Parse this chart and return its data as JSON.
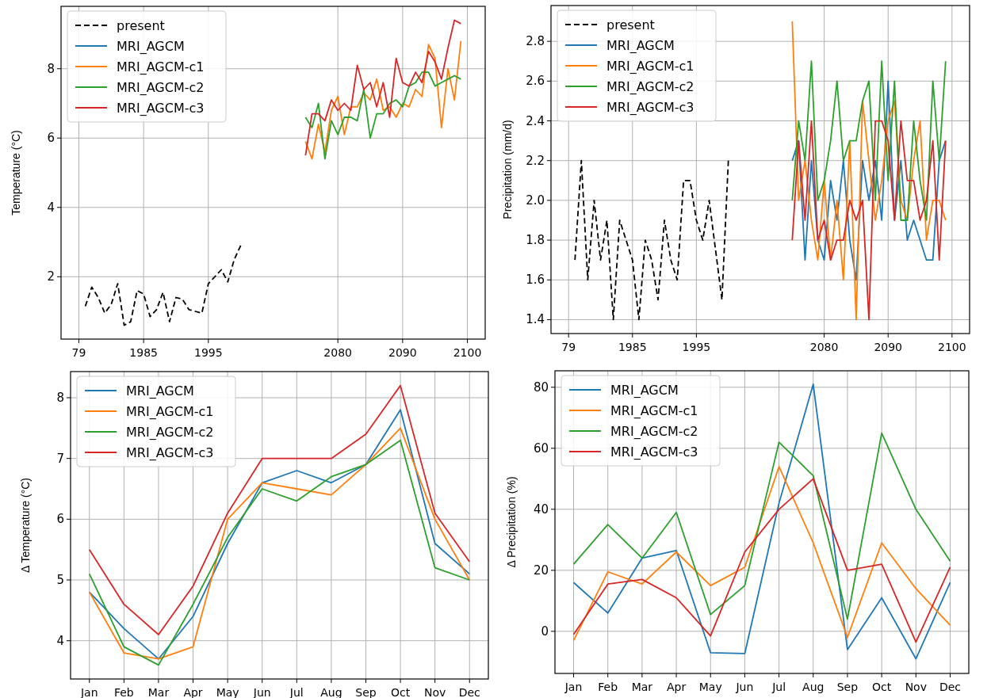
{
  "chart_data": [
    {
      "type": "line",
      "ylabel": "Temperature (°C)",
      "categories": [
        "79",
        null,
        null,
        null,
        null,
        null,
        null,
        null,
        null,
        null,
        "1985",
        null,
        null,
        null,
        null,
        null,
        null,
        null,
        null,
        null,
        "1995",
        null,
        null,
        null,
        null,
        null,
        null,
        null,
        null,
        null,
        null,
        null,
        null,
        null,
        null,
        null,
        null,
        null,
        null,
        null,
        "2080",
        null,
        null,
        null,
        null,
        null,
        null,
        null,
        null,
        null,
        "2090",
        null,
        null,
        null,
        null,
        null,
        null,
        null,
        null,
        null,
        "2100"
      ],
      "ylim": [
        0.2,
        9.8
      ],
      "yticks": [
        2,
        4,
        6,
        8
      ],
      "grid": true,
      "legend": "top left",
      "series": [
        {
          "name": "present",
          "color": "#000000",
          "line_style": "dashed",
          "values": [
            null,
            1.15,
            1.7,
            1.4,
            0.95,
            1.2,
            1.8,
            0.6,
            0.7,
            1.6,
            1.5,
            0.85,
            1.05,
            1.55,
            0.7,
            1.4,
            1.35,
            1.05,
            1.0,
            0.95,
            1.8,
            2.0,
            2.2,
            1.85,
            2.5,
            2.9,
            null,
            null,
            null,
            null,
            null,
            null,
            null,
            null,
            null,
            null,
            null,
            null,
            null,
            null,
            null,
            null,
            null,
            null,
            null,
            null,
            null,
            null,
            null,
            null,
            null,
            null,
            null,
            null,
            null,
            null,
            null,
            null,
            null,
            null,
            null
          ]
        },
        {
          "name": "MRI_AGCM",
          "color": "#1f77b4",
          "values": [
            null,
            null,
            null,
            null,
            null,
            null,
            null,
            null,
            null,
            null,
            null,
            null,
            null,
            null,
            null,
            null,
            null,
            null,
            null,
            null,
            null,
            null,
            null,
            null,
            null,
            null,
            null,
            null,
            null,
            null,
            null,
            null,
            null,
            null,
            null,
            null,
            null,
            null,
            null,
            null,
            null,
            null,
            null,
            null,
            null,
            null,
            null,
            null,
            null,
            null,
            null,
            null,
            null,
            null,
            null,
            null,
            null,
            null,
            null,
            null,
            null
          ]
        },
        {
          "name": "MRI_AGCM-c1",
          "color": "#ff7f0e",
          "values": [
            null,
            null,
            null,
            null,
            null,
            null,
            null,
            null,
            null,
            null,
            null,
            null,
            null,
            null,
            null,
            null,
            null,
            null,
            null,
            null,
            null,
            null,
            null,
            null,
            null,
            null,
            null,
            null,
            null,
            null,
            null,
            null,
            null,
            null,
            null,
            5.9,
            5.4,
            6.4,
            5.6,
            6.8,
            7.2,
            6.1,
            6.9,
            6.9,
            7.3,
            7.1,
            7.7,
            6.8,
            6.9,
            6.6,
            7.0,
            6.9,
            7.4,
            7.2,
            8.7,
            8.3,
            6.3,
            8.0,
            7.1,
            8.8,
            null
          ]
        },
        {
          "name": "MRI_AGCM-c2",
          "color": "#2ca02c",
          "values": [
            null,
            null,
            null,
            null,
            null,
            null,
            null,
            null,
            null,
            null,
            null,
            null,
            null,
            null,
            null,
            null,
            null,
            null,
            null,
            null,
            null,
            null,
            null,
            null,
            null,
            null,
            null,
            null,
            null,
            null,
            null,
            null,
            null,
            null,
            null,
            6.6,
            6.3,
            7.0,
            5.4,
            6.5,
            6.1,
            6.6,
            6.6,
            6.5,
            7.4,
            6.0,
            6.7,
            6.7,
            7.0,
            7.1,
            6.9,
            7.5,
            7.6,
            7.9,
            7.9,
            7.5,
            7.6,
            7.7,
            7.8,
            7.7,
            null
          ]
        },
        {
          "name": "MRI_AGCM-c3",
          "color": "#d62728",
          "values": [
            null,
            null,
            null,
            null,
            null,
            null,
            null,
            null,
            null,
            null,
            null,
            null,
            null,
            null,
            null,
            null,
            null,
            null,
            null,
            null,
            null,
            null,
            null,
            null,
            null,
            null,
            null,
            null,
            null,
            null,
            null,
            null,
            null,
            null,
            null,
            5.5,
            6.7,
            6.7,
            6.5,
            7.1,
            6.8,
            7.0,
            6.8,
            8.1,
            7.4,
            7.6,
            6.9,
            7.6,
            6.6,
            8.3,
            7.6,
            7.5,
            7.9,
            7.6,
            8.5,
            8.2,
            7.7,
            8.6,
            9.4,
            9.3,
            null
          ]
        }
      ]
    },
    {
      "type": "line",
      "ylabel": "Precipitation (mm/d)",
      "categories": [
        "79",
        null,
        null,
        null,
        null,
        null,
        null,
        null,
        null,
        null,
        "1985",
        null,
        null,
        null,
        null,
        null,
        null,
        null,
        null,
        null,
        "1995",
        null,
        null,
        null,
        null,
        null,
        null,
        null,
        null,
        null,
        null,
        null,
        null,
        null,
        null,
        null,
        null,
        null,
        null,
        null,
        "2080",
        null,
        null,
        null,
        null,
        null,
        null,
        null,
        null,
        null,
        "2090",
        null,
        null,
        null,
        null,
        null,
        null,
        null,
        null,
        null,
        "2100"
      ],
      "ylim": [
        1.33,
        2.98
      ],
      "yticks": [
        {
          "value": 1.4,
          "label": "1.4"
        },
        {
          "value": 1.6,
          "label": "1.6"
        },
        {
          "value": 1.8,
          "label": "1.8"
        },
        {
          "value": 2.0,
          "label": "2.0"
        },
        {
          "value": 2.2,
          "label": "2.2"
        },
        {
          "value": 2.4,
          "label": "2.4"
        },
        {
          "value": 2.6,
          "label": "2.6"
        },
        {
          "value": 2.8,
          "label": "2.8"
        }
      ],
      "grid": true,
      "legend": "top left",
      "series": [
        {
          "name": "present",
          "color": "#000000",
          "line_style": "dashed",
          "values": [
            null,
            1.7,
            2.2,
            1.6,
            2.0,
            1.7,
            1.9,
            1.4,
            1.9,
            1.8,
            1.7,
            1.4,
            1.8,
            1.7,
            1.5,
            1.9,
            1.7,
            1.6,
            2.1,
            2.1,
            1.9,
            1.8,
            2.0,
            1.75,
            1.5,
            2.2,
            null,
            null,
            null,
            null,
            null,
            null,
            null,
            null,
            null,
            null,
            null,
            null,
            null,
            null,
            null,
            null,
            null,
            null,
            null,
            null,
            null,
            null,
            null,
            null,
            null,
            null,
            null,
            null,
            null,
            null,
            null,
            null,
            null,
            null,
            null
          ]
        },
        {
          "name": "MRI_AGCM",
          "color": "#1f77b4",
          "values": [
            null,
            null,
            null,
            null,
            null,
            null,
            null,
            null,
            null,
            null,
            null,
            null,
            null,
            null,
            null,
            null,
            null,
            null,
            null,
            null,
            null,
            null,
            null,
            null,
            null,
            null,
            null,
            null,
            null,
            null,
            null,
            null,
            null,
            null,
            null,
            2.2,
            2.3,
            1.7,
            2.2,
            1.8,
            1.7,
            2.1,
            1.9,
            2.2,
            1.8,
            1.6,
            2.2,
            2.0,
            2.2,
            1.9,
            2.6,
            1.9,
            2.2,
            1.8,
            1.9,
            1.8,
            1.7,
            1.7,
            2.2,
            2.3,
            null
          ]
        },
        {
          "name": "MRI_AGCM-c1",
          "color": "#ff7f0e",
          "values": [
            null,
            null,
            null,
            null,
            null,
            null,
            null,
            null,
            null,
            null,
            null,
            null,
            null,
            null,
            null,
            null,
            null,
            null,
            null,
            null,
            null,
            null,
            null,
            null,
            null,
            null,
            null,
            null,
            null,
            null,
            null,
            null,
            null,
            null,
            null,
            2.9,
            2.0,
            2.2,
            1.9,
            1.7,
            2.1,
            1.7,
            2.0,
            1.6,
            2.3,
            1.4,
            2.5,
            2.2,
            1.9,
            2.1,
            2.4,
            2.5,
            2.0,
            1.9,
            2.2,
            2.4,
            1.8,
            2.0,
            2.0,
            1.9,
            null
          ]
        },
        {
          "name": "MRI_AGCM-c2",
          "color": "#2ca02c",
          "values": [
            null,
            null,
            null,
            null,
            null,
            null,
            null,
            null,
            null,
            null,
            null,
            null,
            null,
            null,
            null,
            null,
            null,
            null,
            null,
            null,
            null,
            null,
            null,
            null,
            null,
            null,
            null,
            null,
            null,
            null,
            null,
            null,
            null,
            null,
            null,
            2.0,
            2.4,
            2.2,
            2.7,
            2.0,
            2.1,
            2.3,
            2.6,
            2.2,
            2.3,
            2.3,
            2.5,
            2.6,
            2.0,
            2.7,
            2.1,
            2.6,
            1.9,
            1.9,
            2.4,
            2.1,
            1.9,
            2.6,
            2.2,
            2.7,
            null
          ]
        },
        {
          "name": "MRI_AGCM-c3",
          "color": "#d62728",
          "values": [
            null,
            null,
            null,
            null,
            null,
            null,
            null,
            null,
            null,
            null,
            null,
            null,
            null,
            null,
            null,
            null,
            null,
            null,
            null,
            null,
            null,
            null,
            null,
            null,
            null,
            null,
            null,
            null,
            null,
            null,
            null,
            null,
            null,
            null,
            null,
            1.8,
            2.3,
            1.9,
            2.4,
            1.8,
            1.9,
            1.7,
            1.8,
            1.8,
            2.0,
            1.9,
            2.0,
            1.4,
            2.4,
            2.4,
            2.3,
            1.9,
            2.4,
            2.1,
            2.1,
            1.9,
            2.0,
            2.3,
            1.7,
            2.3,
            null
          ]
        }
      ]
    },
    {
      "type": "line",
      "ylabel": "Δ Temperature (°C)",
      "categories": [
        "Jan",
        "Feb",
        "Mar",
        "Apr",
        "May",
        "Jun",
        "Jul",
        "Aug",
        "Sep",
        "Oct",
        "Nov",
        "Dec"
      ],
      "ylim": [
        3.37,
        8.43
      ],
      "yticks": [
        4,
        5,
        6,
        7,
        8
      ],
      "grid": true,
      "legend": "top left",
      "series": [
        {
          "name": "MRI_AGCM",
          "color": "#1f77b4",
          "values": [
            4.8,
            4.2,
            3.7,
            4.4,
            5.6,
            6.6,
            6.8,
            6.6,
            6.9,
            7.8,
            5.6,
            5.1
          ]
        },
        {
          "name": "MRI_AGCM-c1",
          "color": "#ff7f0e",
          "values": [
            4.8,
            3.8,
            3.7,
            3.9,
            6.0,
            6.6,
            6.5,
            6.4,
            6.9,
            7.5,
            6.0,
            5.0
          ]
        },
        {
          "name": "MRI_AGCM-c2",
          "color": "#2ca02c",
          "values": [
            5.1,
            3.9,
            3.6,
            4.6,
            5.7,
            6.5,
            6.3,
            6.7,
            6.9,
            7.3,
            5.2,
            5.0
          ]
        },
        {
          "name": "MRI_AGCM-c3",
          "color": "#d62728",
          "values": [
            5.5,
            4.6,
            4.1,
            4.9,
            6.1,
            7.0,
            7.0,
            7.0,
            7.4,
            8.2,
            6.1,
            5.3
          ]
        }
      ]
    },
    {
      "type": "line",
      "ylabel": "Δ Precipitation (%)",
      "categories": [
        "Jan",
        "Feb",
        "Mar",
        "Apr",
        "May",
        "Jun",
        "Jul",
        "Aug",
        "Sep",
        "Oct",
        "Nov",
        "Dec"
      ],
      "ylim": [
        -13.8,
        85.4
      ],
      "yticks": [
        0,
        20,
        40,
        60,
        80
      ],
      "grid": true,
      "legend": "top left",
      "series": [
        {
          "name": "MRI_AGCM",
          "color": "#1f77b4",
          "values": [
            16,
            6,
            24,
            26.5,
            -7,
            -7.3,
            42,
            81,
            -6,
            11,
            -9,
            16
          ]
        },
        {
          "name": "MRI_AGCM-c1",
          "color": "#ff7f0e",
          "values": [
            -3,
            19.5,
            15.5,
            26,
            15,
            21,
            54,
            29,
            -2,
            29,
            14,
            2
          ]
        },
        {
          "name": "MRI_AGCM-c2",
          "color": "#2ca02c",
          "values": [
            22,
            35,
            24,
            39,
            5.5,
            15,
            62,
            51,
            4,
            65,
            40,
            23
          ]
        },
        {
          "name": "MRI_AGCM-c3",
          "color": "#d62728",
          "values": [
            -1,
            15.5,
            17,
            11,
            -1.5,
            26,
            40,
            50,
            20,
            22,
            -3.5,
            21
          ]
        }
      ]
    }
  ]
}
